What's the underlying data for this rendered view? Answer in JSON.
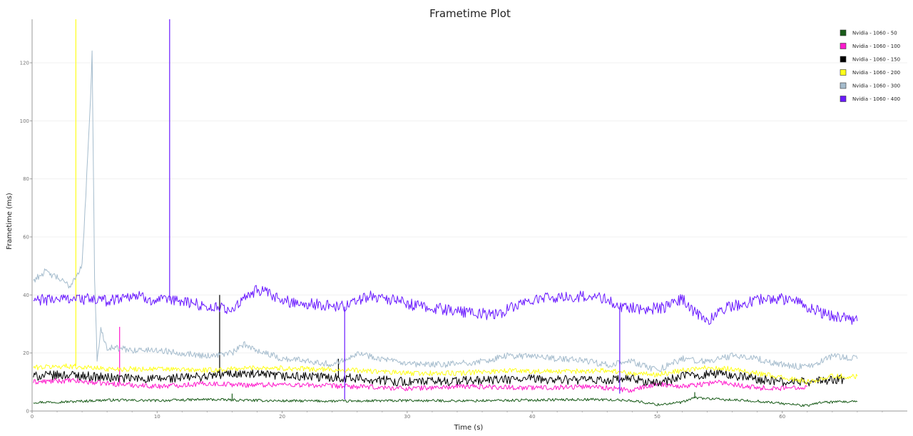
{
  "chart_data": {
    "type": "line",
    "title": "Frametime Plot",
    "xlabel": "Time (s)",
    "ylabel": "Frametime (ms)",
    "xlim": [
      0,
      70
    ],
    "ylim": [
      0,
      135
    ],
    "xticks": [
      0,
      10,
      20,
      30,
      40,
      50,
      60
    ],
    "yticks": [
      0,
      20,
      40,
      60,
      80,
      100,
      120
    ],
    "grid": true,
    "legend_position": "top-right",
    "series": [
      {
        "name": "Nvidia - 1060 - 50",
        "color": "#1a5c1a",
        "points": [
          [
            0.1,
            3
          ],
          [
            3,
            3.2
          ],
          [
            6,
            3.8
          ],
          [
            10,
            3.6
          ],
          [
            14,
            4
          ],
          [
            16,
            3.8
          ],
          [
            20,
            3.5
          ],
          [
            25,
            3.4
          ],
          [
            30,
            3.6
          ],
          [
            35,
            3.5
          ],
          [
            40,
            3.8
          ],
          [
            45,
            4
          ],
          [
            48,
            3.6
          ],
          [
            50,
            2.2
          ],
          [
            52,
            3
          ],
          [
            53,
            4.6
          ],
          [
            55,
            4
          ],
          [
            58,
            3.4
          ],
          [
            60,
            2.6
          ],
          [
            62,
            1.8
          ],
          [
            63,
            3
          ],
          [
            66,
            3.2
          ]
        ],
        "spikes": [
          [
            16,
            6
          ],
          [
            53,
            6.5
          ]
        ]
      },
      {
        "name": "Nvidia - 1060 - 100",
        "color": "#ff1acc",
        "points": [
          [
            0.1,
            10
          ],
          [
            3,
            10.5
          ],
          [
            6,
            9.5
          ],
          [
            10,
            8.5
          ],
          [
            14,
            9.5
          ],
          [
            17,
            9
          ],
          [
            20,
            9.2
          ],
          [
            25,
            8.5
          ],
          [
            30,
            7.8
          ],
          [
            35,
            8.5
          ],
          [
            40,
            8
          ],
          [
            45,
            8.5
          ],
          [
            48,
            7
          ],
          [
            50,
            9.5
          ],
          [
            52,
            8.5
          ],
          [
            55,
            10
          ],
          [
            58,
            8
          ],
          [
            60,
            7.8
          ],
          [
            62,
            8.5
          ]
        ],
        "spikes": [
          [
            7,
            29
          ]
        ]
      },
      {
        "name": "Nvidia - 1060 - 150",
        "color": "#000000",
        "points": [
          [
            0.1,
            12
          ],
          [
            3,
            12.5
          ],
          [
            6,
            11.5
          ],
          [
            10,
            11
          ],
          [
            14,
            12
          ],
          [
            16,
            13
          ],
          [
            20,
            12
          ],
          [
            25,
            11.5
          ],
          [
            30,
            10
          ],
          [
            35,
            10.5
          ],
          [
            40,
            11
          ],
          [
            45,
            10.5
          ],
          [
            48,
            11
          ],
          [
            50,
            9.5
          ],
          [
            52,
            12
          ],
          [
            55,
            13
          ],
          [
            58,
            11
          ],
          [
            60,
            10
          ],
          [
            62,
            10
          ],
          [
            65,
            11
          ]
        ],
        "spikes": [
          [
            15,
            40
          ],
          [
            24.5,
            18
          ]
        ]
      },
      {
        "name": "Nvidia - 1060 - 200",
        "color": "#ffff1a",
        "points": [
          [
            0.1,
            15
          ],
          [
            3,
            15.5
          ],
          [
            6,
            14.5
          ],
          [
            10,
            14.5
          ],
          [
            14,
            14
          ],
          [
            18,
            15
          ],
          [
            22,
            14.5
          ],
          [
            26,
            14
          ],
          [
            30,
            13
          ],
          [
            34,
            13
          ],
          [
            38,
            14
          ],
          [
            42,
            13.5
          ],
          [
            46,
            14
          ],
          [
            48,
            13
          ],
          [
            50,
            12.5
          ],
          [
            52,
            14
          ],
          [
            54,
            15
          ],
          [
            56,
            14.5
          ],
          [
            58,
            13
          ],
          [
            60,
            11.5
          ],
          [
            62,
            10
          ],
          [
            64,
            12
          ],
          [
            66,
            12
          ]
        ],
        "spikes": [
          [
            3.5,
            135
          ]
        ]
      },
      {
        "name": "Nvidia - 1060 - 300",
        "color": "#a5bccd",
        "points": [
          [
            0.1,
            45
          ],
          [
            1,
            48
          ],
          [
            2,
            46
          ],
          [
            3,
            43
          ],
          [
            4,
            50
          ],
          [
            4.6,
            100
          ],
          [
            4.8,
            124
          ],
          [
            5,
            45
          ],
          [
            5.2,
            18
          ],
          [
            5.5,
            28
          ],
          [
            6,
            22
          ],
          [
            8,
            21
          ],
          [
            10,
            21
          ],
          [
            12,
            20
          ],
          [
            14,
            19
          ],
          [
            16,
            20
          ],
          [
            17,
            23
          ],
          [
            18,
            21
          ],
          [
            20,
            18
          ],
          [
            22,
            17.5
          ],
          [
            24,
            16
          ],
          [
            26,
            20
          ],
          [
            28,
            18
          ],
          [
            30,
            16
          ],
          [
            33,
            16
          ],
          [
            36,
            17
          ],
          [
            38,
            19
          ],
          [
            40,
            19
          ],
          [
            42,
            18
          ],
          [
            44,
            17.5
          ],
          [
            46,
            16
          ],
          [
            48,
            17
          ],
          [
            50,
            14
          ],
          [
            52,
            18
          ],
          [
            54,
            17
          ],
          [
            56,
            19
          ],
          [
            58,
            18
          ],
          [
            60,
            16
          ],
          [
            62,
            15
          ],
          [
            64,
            19
          ],
          [
            66,
            18
          ]
        ],
        "spikes": []
      },
      {
        "name": "Nvidia - 1060 - 400",
        "color": "#6a1aff",
        "points": [
          [
            0.1,
            38
          ],
          [
            3,
            39
          ],
          [
            6,
            38
          ],
          [
            8,
            40
          ],
          [
            10,
            38
          ],
          [
            12,
            38
          ],
          [
            14,
            36
          ],
          [
            16,
            35
          ],
          [
            18,
            42
          ],
          [
            20,
            38
          ],
          [
            22,
            37
          ],
          [
            25,
            36
          ],
          [
            27,
            40
          ],
          [
            29,
            38
          ],
          [
            31,
            36
          ],
          [
            33,
            35
          ],
          [
            35,
            34
          ],
          [
            37,
            33
          ],
          [
            39,
            37
          ],
          [
            41,
            39
          ],
          [
            43,
            39
          ],
          [
            45,
            40
          ],
          [
            47,
            36
          ],
          [
            49,
            35
          ],
          [
            51,
            36
          ],
          [
            52,
            39
          ],
          [
            53,
            34
          ],
          [
            54,
            31
          ],
          [
            55,
            35
          ],
          [
            57,
            37
          ],
          [
            59,
            39
          ],
          [
            61,
            38
          ],
          [
            63,
            34
          ],
          [
            65,
            32
          ],
          [
            66,
            31
          ]
        ],
        "spikes": [
          [
            11,
            135
          ],
          [
            25,
            4
          ],
          [
            47,
            6
          ]
        ]
      }
    ]
  }
}
